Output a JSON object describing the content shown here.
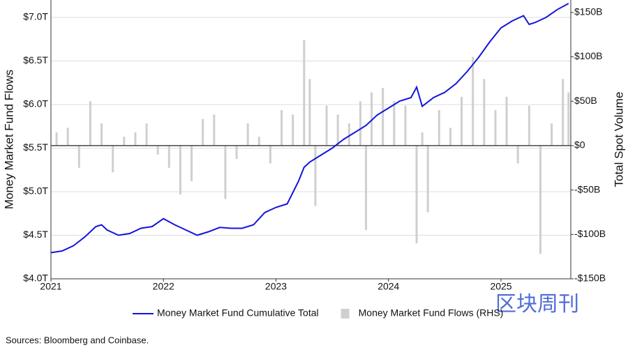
{
  "chart_data": {
    "type": "combo",
    "y_label": "Money Market Fund Flows",
    "y2_label": "Total Spot Volume",
    "source": "Sources: Bloomberg and Coinbase.",
    "watermark": "区块周刊",
    "grid": true,
    "xlim": [
      2021,
      2025.62
    ],
    "xticks": [
      2021,
      2022,
      2023,
      2024,
      2025
    ],
    "ylim": [
      4.0,
      7.2
    ],
    "yticks": [
      {
        "value": 4.0,
        "label": "$4.0T"
      },
      {
        "value": 4.5,
        "label": "$4.5T"
      },
      {
        "value": 5.0,
        "label": "$5.0T"
      },
      {
        "value": 5.5,
        "label": "$5.5T"
      },
      {
        "value": 6.0,
        "label": "$6.0T"
      },
      {
        "value": 6.5,
        "label": "$6.5T"
      },
      {
        "value": 7.0,
        "label": "$7.0T"
      }
    ],
    "y2lim": [
      -150,
      164
    ],
    "y2ticks": [
      {
        "value": -150,
        "label": "-$150B"
      },
      {
        "value": -100,
        "label": "-$100B"
      },
      {
        "value": -50,
        "label": "-$50B"
      },
      {
        "value": 0,
        "label": "$0"
      },
      {
        "value": 50,
        "label": "$50B"
      },
      {
        "value": 100,
        "label": "$100B"
      },
      {
        "value": 150,
        "label": "$150B"
      }
    ],
    "series": [
      {
        "name": "Money Market Fund Cumulative Total",
        "type": "line",
        "color": "#1414dc",
        "x": [
          2021.0,
          2021.1,
          2021.2,
          2021.3,
          2021.4,
          2021.45,
          2021.5,
          2021.6,
          2021.7,
          2021.8,
          2021.9,
          2022.0,
          2022.1,
          2022.2,
          2022.3,
          2022.4,
          2022.5,
          2022.6,
          2022.7,
          2022.8,
          2022.9,
          2023.0,
          2023.1,
          2023.2,
          2023.25,
          2023.3,
          2023.4,
          2023.5,
          2023.6,
          2023.7,
          2023.8,
          2023.9,
          2024.0,
          2024.1,
          2024.2,
          2024.25,
          2024.3,
          2024.4,
          2024.5,
          2024.6,
          2024.7,
          2024.8,
          2024.9,
          2025.0,
          2025.1,
          2025.2,
          2025.25,
          2025.3,
          2025.4,
          2025.5,
          2025.6
        ],
        "values": [
          4.3,
          4.32,
          4.38,
          4.48,
          4.6,
          4.62,
          4.56,
          4.5,
          4.52,
          4.58,
          4.6,
          4.69,
          4.62,
          4.56,
          4.5,
          4.54,
          4.59,
          4.58,
          4.58,
          4.62,
          4.76,
          4.82,
          4.86,
          5.12,
          5.28,
          5.34,
          5.42,
          5.5,
          5.6,
          5.68,
          5.76,
          5.88,
          5.96,
          6.04,
          6.08,
          6.2,
          5.98,
          6.08,
          6.14,
          6.24,
          6.38,
          6.54,
          6.72,
          6.88,
          6.96,
          7.02,
          6.92,
          6.94,
          7.0,
          7.09,
          7.16
        ]
      },
      {
        "name": "Money Market Fund Flows (RHS)",
        "type": "bar",
        "axis": "y2",
        "color": "#cfcfcf",
        "x": [
          2021.05,
          2021.15,
          2021.25,
          2021.35,
          2021.45,
          2021.55,
          2021.65,
          2021.75,
          2021.85,
          2021.95,
          2022.05,
          2022.15,
          2022.25,
          2022.35,
          2022.45,
          2022.55,
          2022.65,
          2022.75,
          2022.85,
          2022.95,
          2023.05,
          2023.15,
          2023.25,
          2023.3,
          2023.35,
          2023.45,
          2023.55,
          2023.65,
          2023.75,
          2023.8,
          2023.85,
          2023.95,
          2024.05,
          2024.15,
          2024.25,
          2024.3,
          2024.35,
          2024.45,
          2024.55,
          2024.65,
          2024.75,
          2024.85,
          2024.95,
          2025.05,
          2025.15,
          2025.25,
          2025.35,
          2025.45,
          2025.55,
          2025.6
        ],
        "values": [
          15,
          20,
          -25,
          50,
          25,
          -30,
          10,
          15,
          25,
          -10,
          -25,
          -55,
          -40,
          30,
          35,
          -60,
          -15,
          25,
          10,
          -20,
          40,
          35,
          119,
          75,
          -68,
          45,
          35,
          25,
          50,
          -95,
          60,
          65,
          50,
          45,
          -110,
          15,
          -75,
          40,
          20,
          55,
          100,
          75,
          40,
          55,
          -20,
          45,
          -122,
          25,
          75,
          60
        ]
      }
    ]
  }
}
